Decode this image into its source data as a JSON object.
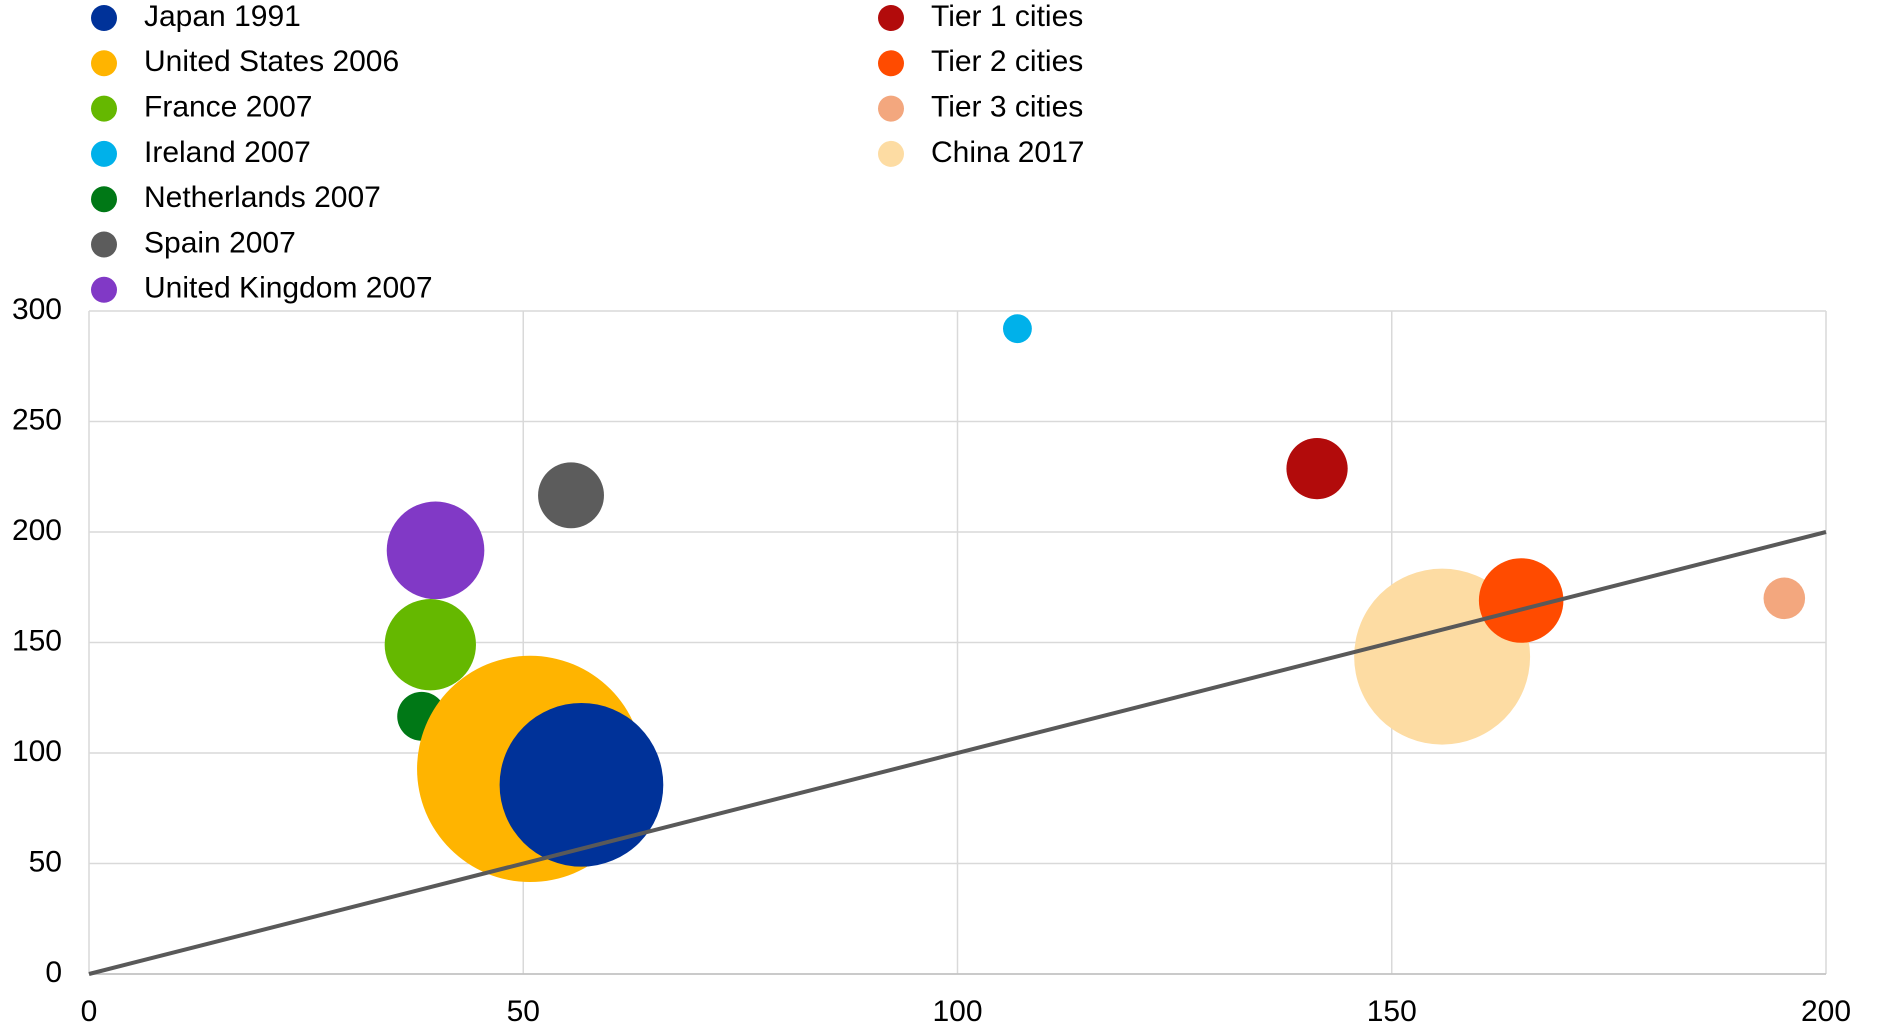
{
  "chart_data": {
    "type": "bubble",
    "series": [
      {
        "name": "Japan 1991",
        "color": "#003299",
        "x": 56.7,
        "y": 85.6,
        "size": 45
      },
      {
        "name": "United States 2006",
        "color": "#ffb400",
        "x": 50.8,
        "y": 92.8,
        "size": 86
      },
      {
        "name": "France 2007",
        "color": "#65b800",
        "x": 39.3,
        "y": 149,
        "size": 14
      },
      {
        "name": "Ireland 2007",
        "color": "#00b1ea",
        "x": 106.9,
        "y": 292,
        "size": 1.4
      },
      {
        "name": "Netherlands 2007",
        "color": "#007816",
        "x": 38.3,
        "y": 116.6,
        "size": 4
      },
      {
        "name": "Spain 2007",
        "color": "#5c5c5c",
        "x": 55.5,
        "y": 216.6,
        "size": 7.3
      },
      {
        "name": "United Kingdom 2007",
        "color": "#8139c6",
        "x": 39.9,
        "y": 191.7,
        "size": 16
      },
      {
        "name": "Tier 1 cities",
        "color": "#b20b0b",
        "x": 141.4,
        "y": 228.7,
        "size": 6.3
      },
      {
        "name": "Tier 2 cities",
        "color": "#ff4b00",
        "x": 164.9,
        "y": 169,
        "size": 12
      },
      {
        "name": "Tier 3 cities",
        "color": "#f3a77e",
        "x": 195.2,
        "y": 170,
        "size": 2.9
      },
      {
        "name": "China 2017",
        "color": "#fddca3",
        "x": 155.8,
        "y": 143.6,
        "size": 52
      }
    ],
    "reference_line": {
      "x": [
        0,
        200
      ],
      "y": [
        0,
        200
      ],
      "color": "#595959"
    },
    "xlim": [
      0,
      200
    ],
    "xticks": [
      0,
      50,
      100,
      150,
      200
    ],
    "ylim": [
      0,
      300
    ],
    "yticks": [
      0,
      50,
      100,
      150,
      200,
      250,
      300
    ],
    "grid": true
  }
}
